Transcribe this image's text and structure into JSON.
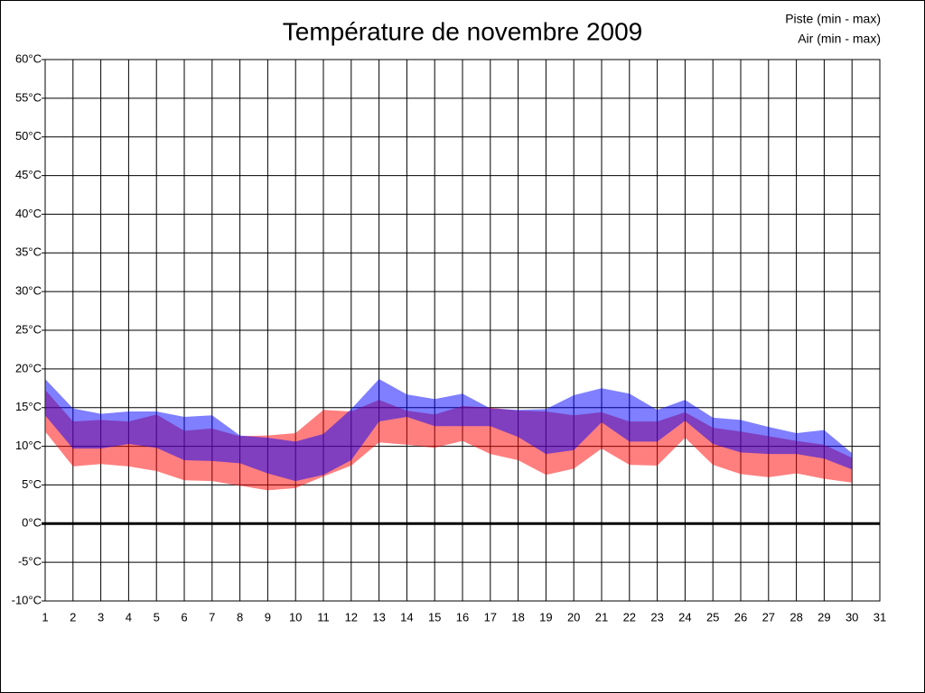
{
  "chart_data": {
    "type": "range-area",
    "title": "Température de novembre 2009",
    "x": [
      1,
      2,
      3,
      4,
      5,
      6,
      7,
      8,
      9,
      10,
      11,
      12,
      13,
      14,
      15,
      16,
      17,
      18,
      19,
      20,
      21,
      22,
      23,
      24,
      25,
      26,
      27,
      28,
      29,
      30
    ],
    "series": [
      {
        "name": "Piste (min - max)",
        "color": "#ff0000",
        "low": [
          11.9,
          7.4,
          7.7,
          7.4,
          6.8,
          5.6,
          5.5,
          4.9,
          4.3,
          4.6,
          6.1,
          7.5,
          10.5,
          10.2,
          9.8,
          10.7,
          9.0,
          8.2,
          6.3,
          7.1,
          9.7,
          7.6,
          7.5,
          11.1,
          7.6,
          6.4,
          6.0,
          6.5,
          5.8,
          5.3
        ],
        "high": [
          17.3,
          13.2,
          13.4,
          13.2,
          14.1,
          12.0,
          12.3,
          11.3,
          11.4,
          11.7,
          14.7,
          14.5,
          16.0,
          14.6,
          14.1,
          15.2,
          15.0,
          14.6,
          14.5,
          14.0,
          14.4,
          13.2,
          13.2,
          14.4,
          12.4,
          11.9,
          11.3,
          10.7,
          10.2,
          8.5
        ]
      },
      {
        "name": "Air (min - max)",
        "color": "#0000ff",
        "low": [
          14.0,
          9.7,
          9.7,
          10.3,
          9.8,
          8.2,
          8.1,
          7.8,
          6.5,
          5.5,
          6.3,
          8.2,
          13.2,
          13.8,
          12.6,
          12.6,
          12.6,
          11.2,
          9.0,
          9.5,
          13.1,
          10.6,
          10.6,
          13.3,
          10.3,
          9.2,
          9.0,
          9.0,
          8.4,
          7.0
        ],
        "high": [
          18.7,
          14.9,
          14.2,
          14.5,
          14.5,
          13.8,
          14.0,
          11.4,
          11.1,
          10.6,
          11.6,
          14.8,
          18.7,
          16.7,
          16.1,
          16.8,
          14.9,
          14.7,
          14.8,
          16.6,
          17.5,
          16.8,
          14.7,
          16.0,
          13.7,
          13.4,
          12.5,
          11.7,
          12.1,
          9.1
        ]
      }
    ],
    "xlim": [
      1,
      31
    ],
    "xticks": [
      1,
      2,
      3,
      4,
      5,
      6,
      7,
      8,
      9,
      10,
      11,
      12,
      13,
      14,
      15,
      16,
      17,
      18,
      19,
      20,
      21,
      22,
      23,
      24,
      25,
      26,
      27,
      28,
      29,
      30,
      31
    ],
    "ylim": [
      -10,
      60
    ],
    "yticks": [
      {
        "value": -10,
        "label": "-10°C"
      },
      {
        "value": -5,
        "label": "-5°C"
      },
      {
        "value": 0,
        "label": "0°C"
      },
      {
        "value": 5,
        "label": "5°C"
      },
      {
        "value": 10,
        "label": "10°C"
      },
      {
        "value": 15,
        "label": "15°C"
      },
      {
        "value": 20,
        "label": "20°C"
      },
      {
        "value": 25,
        "label": "25°C"
      },
      {
        "value": 30,
        "label": "30°C"
      },
      {
        "value": 35,
        "label": "35°C"
      },
      {
        "value": 40,
        "label": "40°C"
      },
      {
        "value": 45,
        "label": "45°C"
      },
      {
        "value": 50,
        "label": "50°C"
      },
      {
        "value": 55,
        "label": "55°C"
      },
      {
        "value": 60,
        "label": "60°C"
      }
    ],
    "grid": true,
    "legend": "top-right"
  }
}
